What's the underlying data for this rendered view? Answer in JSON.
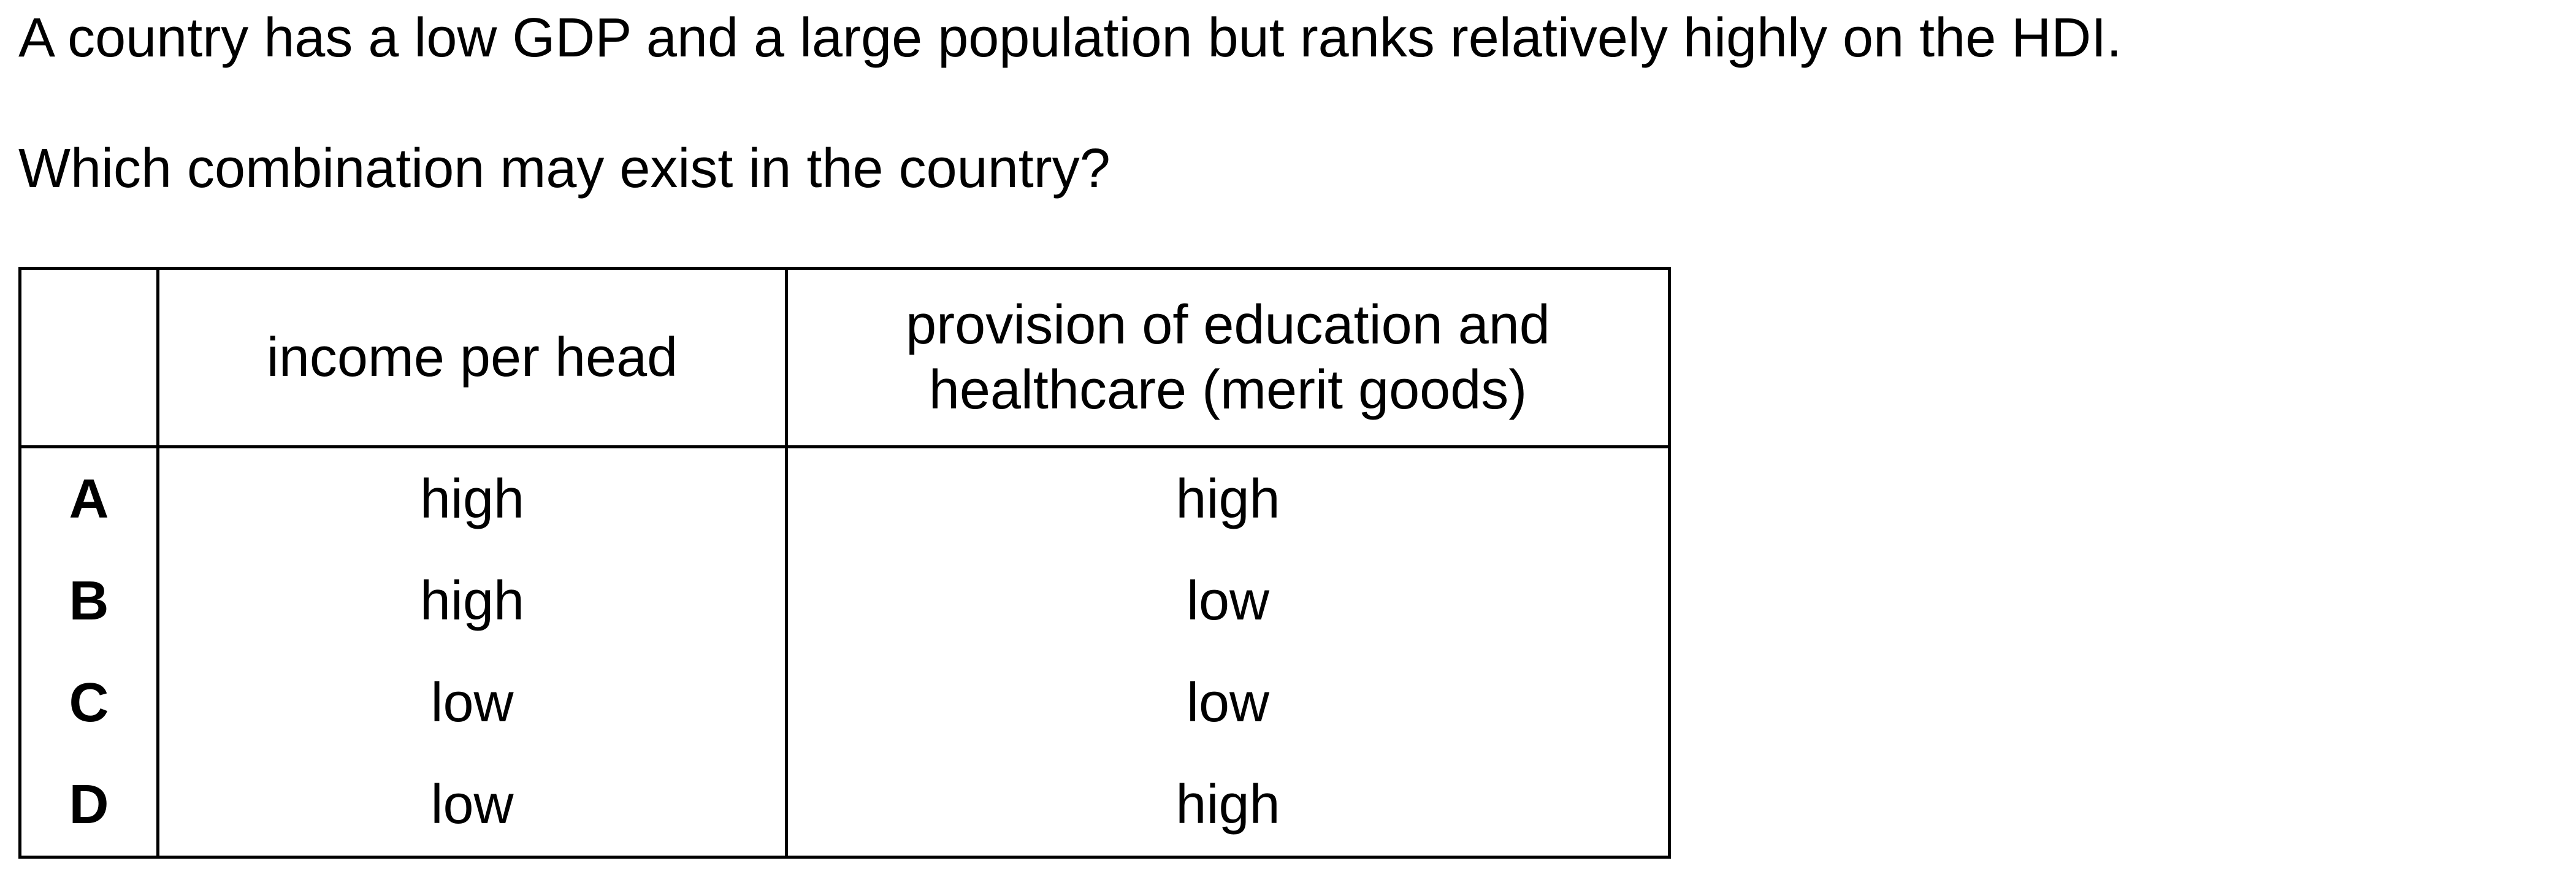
{
  "question": {
    "stem": "A country has a low GDP and a large population but ranks relatively highly on the HDI.",
    "prompt": "Which combination may exist in the country?"
  },
  "table": {
    "headers": {
      "key": "",
      "income": "income per head",
      "provision_line1": "provision of education and",
      "provision_line2": "healthcare (merit goods)"
    },
    "rows": [
      {
        "key": "A",
        "income": "high",
        "provision": "high"
      },
      {
        "key": "B",
        "income": "high",
        "provision": "low"
      },
      {
        "key": "C",
        "income": "low",
        "provision": "low"
      },
      {
        "key": "D",
        "income": "low",
        "provision": "high"
      }
    ]
  }
}
